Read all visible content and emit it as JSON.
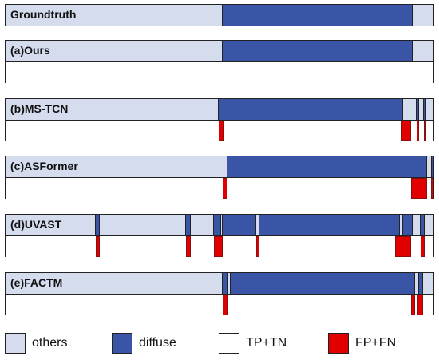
{
  "colors": {
    "others": "#d5dcee",
    "diffuse": "#3a55a5",
    "tp_tn": "#ffffff",
    "fp_fn": "#e00000",
    "border": "#222222"
  },
  "rows": [
    {
      "label": "Groundtruth",
      "segments": [
        [
          "others",
          0.508
        ],
        [
          "diffuse",
          0.951
        ],
        [
          "others",
          1.0
        ]
      ],
      "errors": null
    },
    {
      "label": "(a)Ours",
      "segments": [
        [
          "others",
          0.508
        ],
        [
          "diffuse",
          0.951
        ],
        [
          "others",
          1.0
        ]
      ],
      "errors": []
    },
    {
      "label": "(b)MS-TCN",
      "segments": [
        [
          "others",
          0.499
        ],
        [
          "diffuse",
          0.93
        ],
        [
          "others",
          0.961
        ],
        [
          "diffuse",
          0.966
        ],
        [
          "others",
          0.978
        ],
        [
          "diffuse",
          0.984
        ],
        [
          "others",
          1.0
        ]
      ],
      "errors": [
        [
          0.499,
          0.511
        ],
        [
          0.926,
          0.948
        ],
        [
          0.961,
          0.966
        ],
        [
          0.978,
          0.984
        ]
      ]
    },
    {
      "label": "(c)ASFormer",
      "segments": [
        [
          "others",
          0.518
        ],
        [
          "diffuse",
          0.985
        ],
        [
          "others",
          0.996
        ],
        [
          "diffuse",
          1.0
        ]
      ],
      "errors": [
        [
          0.508,
          0.518
        ],
        [
          0.948,
          0.985
        ],
        [
          0.994,
          1.0
        ]
      ]
    },
    {
      "label": "(d)UVAST",
      "segments": [
        [
          "others",
          0.211
        ],
        [
          "diffuse",
          0.22
        ],
        [
          "others",
          0.421
        ],
        [
          "diffuse",
          0.432
        ],
        [
          "others",
          0.487
        ],
        [
          "diffuse",
          0.504
        ],
        [
          "others",
          0.508
        ],
        [
          "diffuse",
          0.585
        ],
        [
          "others",
          0.594
        ],
        [
          "diffuse",
          0.922
        ],
        [
          "others",
          0.93
        ],
        [
          "diffuse",
          0.952
        ],
        [
          "others",
          0.97
        ],
        [
          "diffuse",
          0.98
        ],
        [
          "others",
          1.0
        ]
      ],
      "errors": [
        [
          0.211,
          0.22
        ],
        [
          0.421,
          0.432
        ],
        [
          0.487,
          0.508
        ],
        [
          0.585,
          0.594
        ],
        [
          0.91,
          0.948
        ],
        [
          0.97,
          0.98
        ]
      ]
    },
    {
      "label": "(e)FACTM",
      "segments": [
        [
          "others",
          0.508
        ],
        [
          "diffuse",
          0.52
        ],
        [
          "others",
          0.526
        ],
        [
          "diffuse",
          0.957
        ],
        [
          "others",
          0.966
        ],
        [
          "diffuse",
          0.975
        ],
        [
          "others",
          1.0
        ]
      ],
      "errors": [
        [
          0.508,
          0.52
        ],
        [
          0.948,
          0.957
        ],
        [
          0.962,
          0.975
        ]
      ]
    }
  ],
  "legend": [
    {
      "key": "others",
      "label": "others"
    },
    {
      "key": "diffuse",
      "label": "diffuse"
    },
    {
      "key": "tp_tn",
      "label": "TP+TN"
    },
    {
      "key": "fp_fn",
      "label": "FP+FN"
    }
  ]
}
